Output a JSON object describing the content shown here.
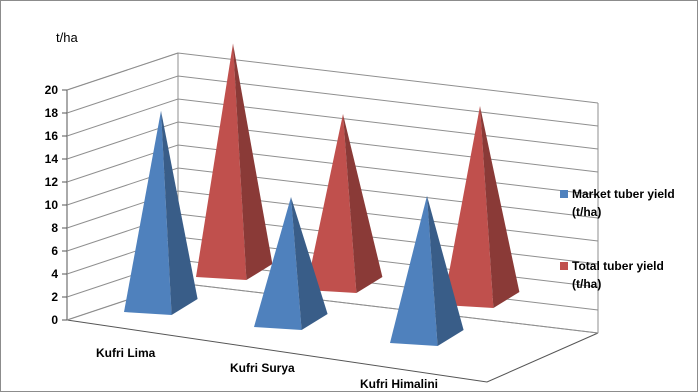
{
  "chart_data": {
    "type": "bar",
    "style": "3d-pyramid",
    "title": "",
    "y_unit": "t/ha",
    "ylim": [
      0,
      20
    ],
    "yticks": [
      0,
      2,
      4,
      6,
      8,
      10,
      12,
      14,
      16,
      18,
      20
    ],
    "categories": [
      "Kufri Lima",
      "Kufri Surya",
      "Kufri Himalini"
    ],
    "series": [
      {
        "name": "Market tuber yield (t/ha)",
        "legend_lines": [
          "Market tuber yield",
          "(t/ha)"
        ],
        "color": "#4f81bd",
        "values": [
          18.2,
          12.0,
          13.5
        ]
      },
      {
        "name": "Total tuber yield (t/ha)",
        "legend_lines": [
          "Total tuber yield",
          "(t/ha)"
        ],
        "color": "#c0504d",
        "values": [
          21.0,
          16.0,
          18.0
        ]
      }
    ],
    "grid": true,
    "legend_position": "right"
  }
}
